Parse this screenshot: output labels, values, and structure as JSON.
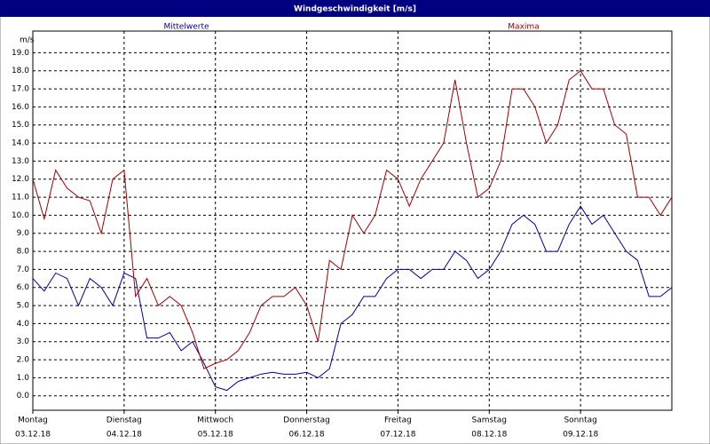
{
  "chart_data": {
    "type": "line",
    "title": "Windgeschwindigkeit [m/s]",
    "y_label": "m/s",
    "categories": [
      {
        "day": "Montag",
        "date": "03.12.18"
      },
      null,
      null,
      null,
      null,
      null,
      null,
      null,
      {
        "day": "Dienstag",
        "date": "04.12.18"
      },
      null,
      null,
      null,
      null,
      null,
      null,
      null,
      {
        "day": "Mittwoch",
        "date": "05.12.18"
      },
      null,
      null,
      null,
      null,
      null,
      null,
      null,
      {
        "day": "Donnerstag",
        "date": "06.12.18"
      },
      null,
      null,
      null,
      null,
      null,
      null,
      null,
      {
        "day": "Freitag",
        "date": "07.12.18"
      },
      null,
      null,
      null,
      null,
      null,
      null,
      null,
      {
        "day": "Samstag",
        "date": "08.12.18"
      },
      null,
      null,
      null,
      null,
      null,
      null,
      null,
      {
        "day": "Sonntag",
        "date": "09.12.18"
      },
      null,
      null,
      null,
      null,
      null,
      null,
      null,
      null
    ],
    "series": [
      {
        "name": "Mittelwerte",
        "color": "#0000a0",
        "values": [
          6.5,
          5.8,
          6.8,
          6.5,
          5.0,
          6.5,
          6.0,
          5.0,
          6.8,
          6.5,
          3.2,
          3.2,
          3.5,
          2.5,
          3.0,
          1.8,
          0.5,
          0.3,
          0.8,
          1.0,
          1.2,
          1.3,
          1.2,
          1.2,
          1.3,
          1.0,
          1.5,
          4.0,
          4.5,
          5.5,
          5.5,
          6.5,
          7.0,
          7.0,
          6.5,
          7.0,
          7.0,
          8.0,
          7.5,
          6.5,
          7.0,
          8.0,
          9.5,
          10.0,
          9.5,
          8.0,
          8.0,
          9.5,
          10.5,
          9.5,
          10.0,
          9.0,
          8.0,
          7.5,
          5.5,
          5.5,
          6.0
        ]
      },
      {
        "name": "Maxima",
        "color": "#a00000",
        "values": [
          12.0,
          9.8,
          12.5,
          11.5,
          11.0,
          10.8,
          9.0,
          12.0,
          12.5,
          5.5,
          6.5,
          5.0,
          5.5,
          5.0,
          3.5,
          1.5,
          1.8,
          2.0,
          2.5,
          3.5,
          5.0,
          5.5,
          5.5,
          6.0,
          5.0,
          3.0,
          7.5,
          7.0,
          10.0,
          9.0,
          10.0,
          12.5,
          12.0,
          10.5,
          12.0,
          13.0,
          14.0,
          17.5,
          14.0,
          11.0,
          11.5,
          13.0,
          17.0,
          17.0,
          16.0,
          14.0,
          15.0,
          17.5,
          18.0,
          17.0,
          17.0,
          15.0,
          14.5,
          11.0,
          11.0,
          10.0,
          11.0
        ]
      }
    ],
    "ylim": [
      -0.8,
      20.2
    ],
    "yticks": [
      {
        "value": 0,
        "label": "0.0"
      },
      {
        "value": 1,
        "label": "1.0"
      },
      {
        "value": 2,
        "label": "2.0"
      },
      {
        "value": 3,
        "label": "3.0"
      },
      {
        "value": 4,
        "label": "4.0"
      },
      {
        "value": 5,
        "label": "5.0"
      },
      {
        "value": 6,
        "label": "6.0"
      },
      {
        "value": 7,
        "label": "7.0"
      },
      {
        "value": 8,
        "label": "8.0"
      },
      {
        "value": 9,
        "label": "9.0"
      },
      {
        "value": 10,
        "label": "10.0"
      },
      {
        "value": 11,
        "label": "11.0"
      },
      {
        "value": 12,
        "label": "12.0"
      },
      {
        "value": 13,
        "label": "13.0"
      },
      {
        "value": 14,
        "label": "14.0"
      },
      {
        "value": 15,
        "label": "15.0"
      },
      {
        "value": 16,
        "label": "16.0"
      },
      {
        "value": 17,
        "label": "17.0"
      },
      {
        "value": 18,
        "label": "18.0"
      },
      {
        "value": 19,
        "label": "19.0"
      }
    ],
    "grid": true
  }
}
